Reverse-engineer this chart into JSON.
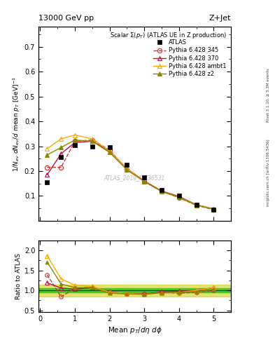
{
  "title_top": "13000 GeV pp",
  "title_right": "Z+Jet",
  "plot_title": "Scalar Σ(p_{T}) (ATLAS UE in Z production)",
  "watermark": "ATLAS_2019_I1736531",
  "right_label": "mcplots.cern.ch [arXiv:1306.3436]",
  "right_label2": "Rivet 3.1.10, ≥ 3.3M events",
  "ylabel_main": "1/N_{ev} dN_{ev}/d mean p_{T} [GeV]^{-1}",
  "ylabel_ratio": "Ratio to ATLAS",
  "xlabel": "Mean p_{T}/dη dϕ",
  "ylim_main": [
    0.0,
    0.78
  ],
  "ylim_ratio": [
    0.45,
    2.25
  ],
  "yticks_main": [
    0.1,
    0.2,
    0.3,
    0.4,
    0.5,
    0.6,
    0.7
  ],
  "yticks_ratio": [
    0.5,
    1.0,
    1.5,
    2.0
  ],
  "xlim": [
    -0.05,
    5.5
  ],
  "xticks": [
    0,
    1,
    2,
    3,
    4,
    5
  ],
  "atlas_x": [
    0.2,
    0.6,
    1.0,
    1.5,
    2.0,
    2.5,
    3.0,
    3.5,
    4.0,
    4.5,
    5.0
  ],
  "atlas_y": [
    0.155,
    0.255,
    0.305,
    0.3,
    0.295,
    0.225,
    0.175,
    0.125,
    0.1,
    0.065,
    0.045
  ],
  "p345_x": [
    0.2,
    0.6,
    1.0,
    1.5,
    2.0,
    2.5,
    3.0,
    3.5,
    4.0,
    4.5,
    5.0
  ],
  "p345_y": [
    0.215,
    0.215,
    0.32,
    0.325,
    0.285,
    0.205,
    0.16,
    0.118,
    0.093,
    0.062,
    0.045
  ],
  "p370_x": [
    0.2,
    0.6,
    1.0,
    1.5,
    2.0,
    2.5,
    3.0,
    3.5,
    4.0,
    4.5,
    5.0
  ],
  "p370_y": [
    0.185,
    0.27,
    0.315,
    0.32,
    0.28,
    0.21,
    0.16,
    0.12,
    0.098,
    0.065,
    0.048
  ],
  "pambt1_x": [
    0.2,
    0.6,
    1.0,
    1.5,
    2.0,
    2.5,
    3.0,
    3.5,
    4.0,
    4.5,
    5.0
  ],
  "pambt1_y": [
    0.29,
    0.33,
    0.345,
    0.33,
    0.28,
    0.21,
    0.158,
    0.118,
    0.095,
    0.065,
    0.048
  ],
  "pz2_x": [
    0.2,
    0.6,
    1.0,
    1.5,
    2.0,
    2.5,
    3.0,
    3.5,
    4.0,
    4.5,
    5.0
  ],
  "pz2_y": [
    0.265,
    0.295,
    0.325,
    0.32,
    0.275,
    0.205,
    0.158,
    0.118,
    0.095,
    0.063,
    0.046
  ],
  "ratio_x": [
    0.2,
    0.6,
    1.0,
    1.5,
    2.0,
    2.5,
    3.0,
    3.5,
    4.0,
    4.5,
    5.0
  ],
  "ratio_p345": [
    1.39,
    0.84,
    1.05,
    1.08,
    0.97,
    0.91,
    0.91,
    0.95,
    0.93,
    0.95,
    1.0
  ],
  "ratio_p370": [
    1.19,
    1.06,
    1.03,
    1.07,
    0.95,
    0.93,
    0.91,
    0.96,
    0.98,
    1.0,
    1.07
  ],
  "ratio_pambt1": [
    1.87,
    1.29,
    1.13,
    1.1,
    0.95,
    0.93,
    0.9,
    0.94,
    0.95,
    1.0,
    1.07
  ],
  "ratio_pz2": [
    1.71,
    1.16,
    1.07,
    1.07,
    0.93,
    0.91,
    0.9,
    0.94,
    0.95,
    0.97,
    1.02
  ],
  "band_green_inner": 0.05,
  "band_yellow_outer": 0.15,
  "color_atlas": "#000000",
  "color_345": "#cc3333",
  "color_370": "#bb1144",
  "color_ambt1": "#ffaa00",
  "color_z2": "#888800",
  "color_green_band": "#00cc00",
  "color_yellow_band": "#cccc00"
}
